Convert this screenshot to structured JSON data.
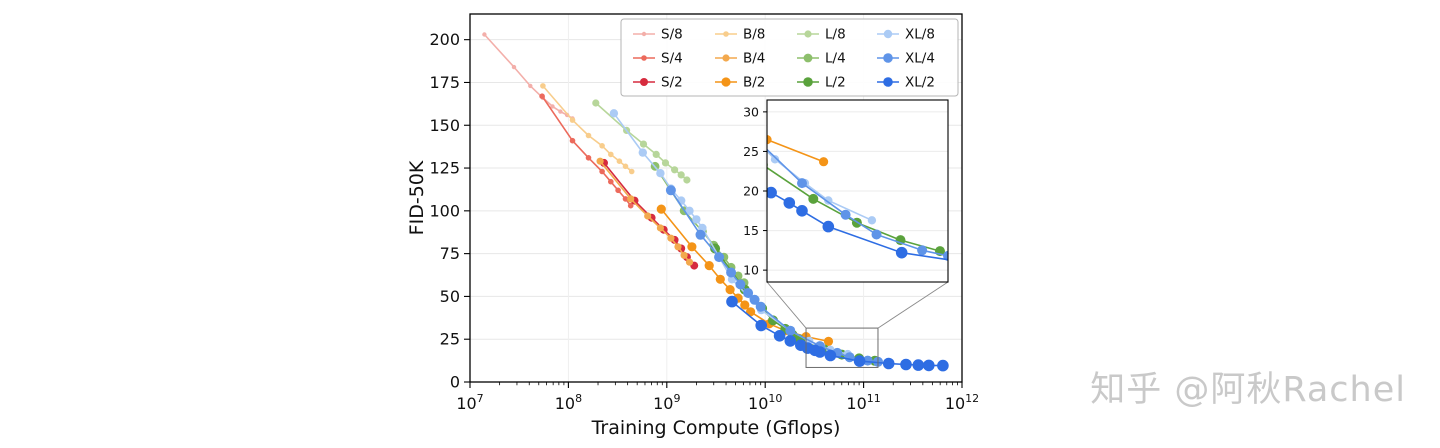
{
  "watermark": {
    "text": "知乎 @阿秋Rachel",
    "color": "#c9c9c9"
  },
  "chart_data": {
    "type": "line",
    "title": "",
    "xlabel": "Training Compute (Gflops)",
    "ylabel": "FID-50K",
    "x_scale": "log10",
    "xlim": [
      10000000.0,
      1000000000000.0
    ],
    "ylim": [
      0,
      215
    ],
    "x_tick_exponents": [
      7,
      8,
      9,
      10,
      11,
      12
    ],
    "y_ticks": [
      0,
      25,
      50,
      75,
      100,
      125,
      150,
      175,
      200
    ],
    "grid": true,
    "legend": {
      "position": "top-center",
      "columns": 4,
      "order": "column-major"
    },
    "series": [
      {
        "name": "S/8",
        "color": "#f3afaa",
        "marker_px": 2.2,
        "points": [
          [
            14000000.0,
            203
          ],
          [
            28000000.0,
            184
          ],
          [
            41000000.0,
            173
          ],
          [
            55000000.0,
            166
          ],
          [
            69000000.0,
            161
          ],
          [
            83000000.0,
            158
          ],
          [
            97000000.0,
            156
          ],
          [
            110000000.0,
            154
          ]
        ]
      },
      {
        "name": "S/4",
        "color": "#ec6a5c",
        "marker_px": 2.8,
        "points": [
          [
            54000000.0,
            167
          ],
          [
            110000000.0,
            141
          ],
          [
            160000000.0,
            131
          ],
          [
            220000000.0,
            123
          ],
          [
            270000000.0,
            117
          ],
          [
            320000000.0,
            112
          ],
          [
            380000000.0,
            107
          ],
          [
            430000000.0,
            103
          ]
        ]
      },
      {
        "name": "S/2",
        "color": "#d62b3e",
        "marker_px": 4,
        "points": [
          [
            230000000.0,
            128
          ],
          [
            470000000.0,
            106
          ],
          [
            700000000.0,
            96
          ],
          [
            930000000.0,
            89
          ],
          [
            1200000000.0,
            83
          ],
          [
            1400000000.0,
            78
          ],
          [
            1600000000.0,
            73
          ],
          [
            1900000000.0,
            68
          ]
        ]
      },
      {
        "name": "B/8",
        "color": "#f8cd8c",
        "marker_px": 2.8,
        "points": [
          [
            55000000.0,
            173
          ],
          [
            110000000.0,
            153
          ],
          [
            160000000.0,
            144
          ],
          [
            220000000.0,
            138
          ],
          [
            270000000.0,
            133
          ],
          [
            330000000.0,
            129
          ],
          [
            380000000.0,
            126
          ],
          [
            440000000.0,
            123
          ]
        ]
      },
      {
        "name": "B/4",
        "color": "#f3a94e",
        "marker_px": 3.6,
        "points": [
          [
            210000000.0,
            129
          ],
          [
            430000000.0,
            107
          ],
          [
            640000000.0,
            97
          ],
          [
            860000000.0,
            90
          ],
          [
            1100000000.0,
            84
          ],
          [
            1300000000.0,
            79
          ],
          [
            1500000000.0,
            74
          ],
          [
            1700000000.0,
            70
          ]
        ]
      },
      {
        "name": "B/2",
        "color": "#f49417",
        "marker_px": 4.6,
        "points": [
          [
            880000000.0,
            101
          ],
          [
            1800000000.0,
            79
          ],
          [
            2700000000.0,
            68
          ],
          [
            3500000000.0,
            60
          ],
          [
            4400000000.0,
            54
          ],
          [
            5300000000.0,
            49
          ],
          [
            6200000000.0,
            45
          ],
          [
            7100000000.0,
            41
          ],
          [
            11000000000.0,
            34
          ],
          [
            16000000000.0,
            30
          ],
          [
            26000000000.0,
            26.5
          ],
          [
            44000000000.0,
            23.7
          ]
        ]
      },
      {
        "name": "L/8",
        "color": "#b7d69a",
        "marker_px": 3.6,
        "points": [
          [
            190000000.0,
            163
          ],
          [
            390000000.0,
            147
          ],
          [
            580000000.0,
            139
          ],
          [
            780000000.0,
            133
          ],
          [
            970000000.0,
            128
          ],
          [
            1200000000.0,
            124
          ],
          [
            1400000000.0,
            121
          ],
          [
            1600000000.0,
            118
          ]
        ]
      },
      {
        "name": "L/4",
        "color": "#8dbf6c",
        "marker_px": 4.4,
        "points": [
          [
            760000000.0,
            126
          ],
          [
            1500000000.0,
            100
          ],
          [
            2300000000.0,
            88
          ],
          [
            3000000000.0,
            80
          ],
          [
            3800000000.0,
            73
          ],
          [
            4500000000.0,
            67
          ],
          [
            5300000000.0,
            62
          ],
          [
            6100000000.0,
            58
          ]
        ]
      },
      {
        "name": "L/2",
        "color": "#5aa23c",
        "marker_px": 5,
        "points": [
          [
            3100000000.0,
            78
          ],
          [
            6200000000.0,
            54
          ],
          [
            9300000000.0,
            43
          ],
          [
            12000000000.0,
            36
          ],
          [
            16000000000.0,
            31
          ],
          [
            19000000000.0,
            27.5
          ],
          [
            22000000000.0,
            25
          ],
          [
            25000000000.0,
            23.3
          ],
          [
            40000000000.0,
            19
          ],
          [
            60000000000.0,
            16
          ],
          [
            90000000000.0,
            13.8
          ],
          [
            130000000000.0,
            12.4
          ]
        ]
      },
      {
        "name": "XL/8",
        "color": "#abcbf5",
        "marker_px": 4.2,
        "points": [
          [
            290000000.0,
            157
          ],
          [
            570000000.0,
            134
          ],
          [
            860000000.0,
            122
          ],
          [
            1100000000.0,
            113
          ],
          [
            1400000000.0,
            106
          ],
          [
            1700000000.0,
            100
          ],
          [
            2000000000.0,
            95
          ],
          [
            2300000000.0,
            90
          ],
          [
            4600000000.0,
            60
          ],
          [
            9100000000.0,
            42
          ],
          [
            18000000000.0,
            30
          ],
          [
            28000000000.0,
            24
          ],
          [
            37000000000.0,
            21
          ],
          [
            46000000000.0,
            18.8
          ],
          [
            69000000000.0,
            16.3
          ]
        ]
      },
      {
        "name": "XL/4",
        "color": "#5f94e8",
        "marker_px": 5,
        "points": [
          [
            1100000000.0,
            112
          ],
          [
            2200000000.0,
            86
          ],
          [
            3400000000.0,
            73
          ],
          [
            4500000000.0,
            64
          ],
          [
            5600000000.0,
            57
          ],
          [
            6700000000.0,
            52
          ],
          [
            7800000000.0,
            48
          ],
          [
            9000000000.0,
            44
          ],
          [
            18000000000.0,
            30
          ],
          [
            36000000000.0,
            21
          ],
          [
            54000000000.0,
            17
          ],
          [
            72000000000.0,
            14.5
          ],
          [
            110000000000.0,
            12.5
          ],
          [
            140000000000.0,
            11.8
          ]
        ]
      },
      {
        "name": "XL/2",
        "color": "#2e6de3",
        "marker_px": 5.8,
        "points": [
          [
            4600000000.0,
            47
          ],
          [
            9100000000.0,
            33
          ],
          [
            14000000000.0,
            27
          ],
          [
            18000000000.0,
            24
          ],
          [
            23000000000.0,
            21.5
          ],
          [
            27000000000.0,
            19.8
          ],
          [
            32000000000.0,
            18.5
          ],
          [
            36000000000.0,
            17.5
          ],
          [
            46000000000.0,
            15.5
          ],
          [
            91000000000.0,
            12.2
          ],
          [
            180000000000.0,
            10.8
          ],
          [
            270000000000.0,
            10.2
          ],
          [
            360000000000.0,
            9.9
          ],
          [
            460000000000.0,
            9.7
          ],
          [
            640000000000.0,
            9.6
          ]
        ]
      }
    ],
    "inset": {
      "xlim": [
        26000000000.0,
        140000000000.0
      ],
      "ylim": [
        8.5,
        31.5
      ],
      "y_ticks": [
        10,
        15,
        20,
        25,
        30
      ],
      "grid": true
    }
  }
}
